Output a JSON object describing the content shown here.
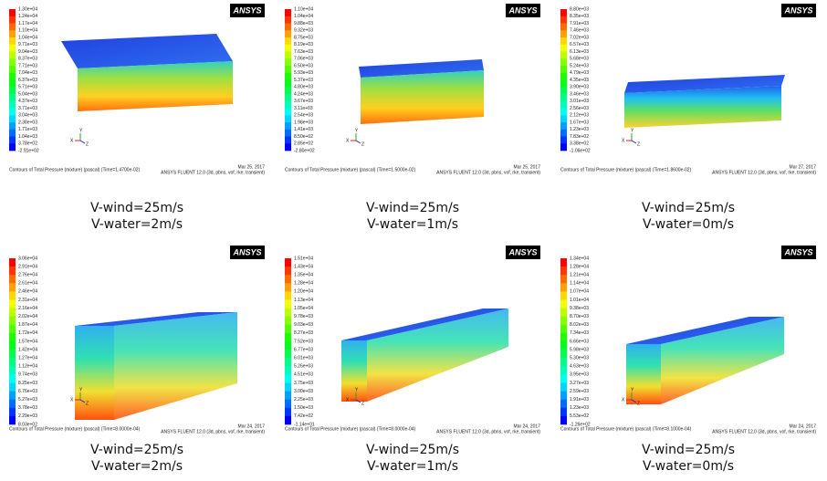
{
  "logo": "ANSYS",
  "triad": {
    "x": "X",
    "y": "Y",
    "z": "Z"
  },
  "panels": [
    {
      "legend": [
        "1.30e+04",
        "1.24e+04",
        "1.17e+04",
        "1.10e+04",
        "1.04e+04",
        "9.71e+03",
        "9.04e+03",
        "8.37e+03",
        "7.71e+03",
        "7.04e+03",
        "6.37e+03",
        "5.71e+03",
        "5.04e+03",
        "4.37e+03",
        "3.71e+03",
        "3.04e+03",
        "2.38e+03",
        "1.71e+03",
        "1.04e+03",
        "3.78e+02",
        "-2.91e+02"
      ],
      "footer": "Contours of Total Pressure (mixture)  (pascal)  (Time=1.4700e-02)",
      "date": "Mar 25, 2017",
      "version": "ANSYS FLUENT 12.0 (3d, pbns, vof, rke, transient)",
      "caption": [
        "V-wind=25m/s",
        "V-water=2m/s"
      ]
    },
    {
      "legend": [
        "1.10e+04",
        "1.04e+04",
        "9.88e+03",
        "9.32e+03",
        "8.75e+03",
        "8.19e+03",
        "7.63e+03",
        "7.06e+03",
        "6.50e+03",
        "5.93e+03",
        "5.37e+03",
        "4.80e+03",
        "4.24e+03",
        "3.67e+03",
        "3.11e+03",
        "2.54e+03",
        "1.98e+03",
        "1.41e+03",
        "8.50e+02",
        "2.85e+02",
        "-2.80e+02"
      ],
      "footer": "Contours of Total Pressure (mixture)  (pascal)  (Time=1.5000e-02)",
      "date": "Mar 25, 2017",
      "version": "ANSYS FLUENT 12.0 (3d, pbns, vof, rke, transient)",
      "caption": [
        "V-wind=25m/s",
        "V-water=1m/s"
      ]
    },
    {
      "legend": [
        "8.80e+03",
        "8.35e+03",
        "7.91e+03",
        "7.46e+03",
        "7.02e+03",
        "6.57e+03",
        "6.13e+03",
        "5.68e+03",
        "5.24e+03",
        "4.79e+03",
        "4.35e+03",
        "3.90e+03",
        "3.46e+03",
        "3.01e+03",
        "2.56e+03",
        "2.12e+03",
        "1.67e+03",
        "1.23e+03",
        "7.83e+02",
        "3.38e+02",
        "-1.06e+02"
      ],
      "footer": "Contours of Total Pressure (mixture)  (pascal)  (Time=1.8600e-02)",
      "date": "Mar 27, 2017",
      "version": "ANSYS FLUENT 12.0 (3d, pbns, vof, rke, transient)",
      "caption": [
        "V-wind=25m/s",
        "V-water=0m/s"
      ]
    },
    {
      "legend": [
        "3.06e+04",
        "2.91e+04",
        "2.76e+04",
        "2.61e+04",
        "2.46e+04",
        "2.31e+04",
        "2.16e+04",
        "2.02e+04",
        "1.87e+04",
        "1.72e+04",
        "1.57e+04",
        "1.42e+04",
        "1.27e+04",
        "1.12e+04",
        "9.74e+03",
        "8.25e+03",
        "6.76e+03",
        "5.27e+03",
        "3.78e+03",
        "2.29e+03",
        "8.03e+02"
      ],
      "footer": "Contours of Total Pressure (mixture)  (pascal)  (Time=8.0000e-04)",
      "date": "Mar 24, 2017",
      "version": "ANSYS FLUENT 12.0 (3d, pbns, vof, rke, transient)",
      "caption": [
        "V-wind=25m/s",
        "V-water=2m/s"
      ]
    },
    {
      "legend": [
        "1.51e+04",
        "1.43e+04",
        "1.35e+04",
        "1.28e+04",
        "1.20e+04",
        "1.13e+04",
        "1.05e+04",
        "9.78e+03",
        "9.03e+03",
        "8.27e+03",
        "7.52e+03",
        "6.77e+03",
        "6.01e+03",
        "5.26e+03",
        "4.51e+03",
        "3.75e+03",
        "3.00e+03",
        "2.25e+03",
        "1.50e+03",
        "7.42e+02",
        "-1.14e+01"
      ],
      "footer": "Contours of Total Pressure (mixture)  (pascal)  (Time=8.0000e-04)",
      "date": "Mar 24, 2017",
      "version": "ANSYS FLUENT 12.0 (3d, pbns, vof, rke, transient)",
      "caption": [
        "V-wind=25m/s",
        "V-water=1m/s"
      ]
    },
    {
      "legend": [
        "1.34e+04",
        "1.28e+04",
        "1.21e+04",
        "1.14e+04",
        "1.07e+04",
        "1.01e+04",
        "9.38e+03",
        "8.70e+03",
        "8.02e+03",
        "7.34e+03",
        "6.66e+03",
        "5.98e+03",
        "5.30e+03",
        "4.63e+03",
        "3.95e+03",
        "3.27e+03",
        "2.59e+03",
        "1.91e+03",
        "1.23e+03",
        "5.53e+02",
        "-1.26e+02"
      ],
      "footer": "Contours of Total Pressure (mixture)  (pascal)  (Time=8.1000e-04)",
      "date": "Mar 24, 2017",
      "version": "ANSYS FLUENT 12.0 (3d, pbns, vof, rke, transient)",
      "caption": [
        "V-wind=25m/s",
        "V-water=0m/s"
      ]
    }
  ]
}
